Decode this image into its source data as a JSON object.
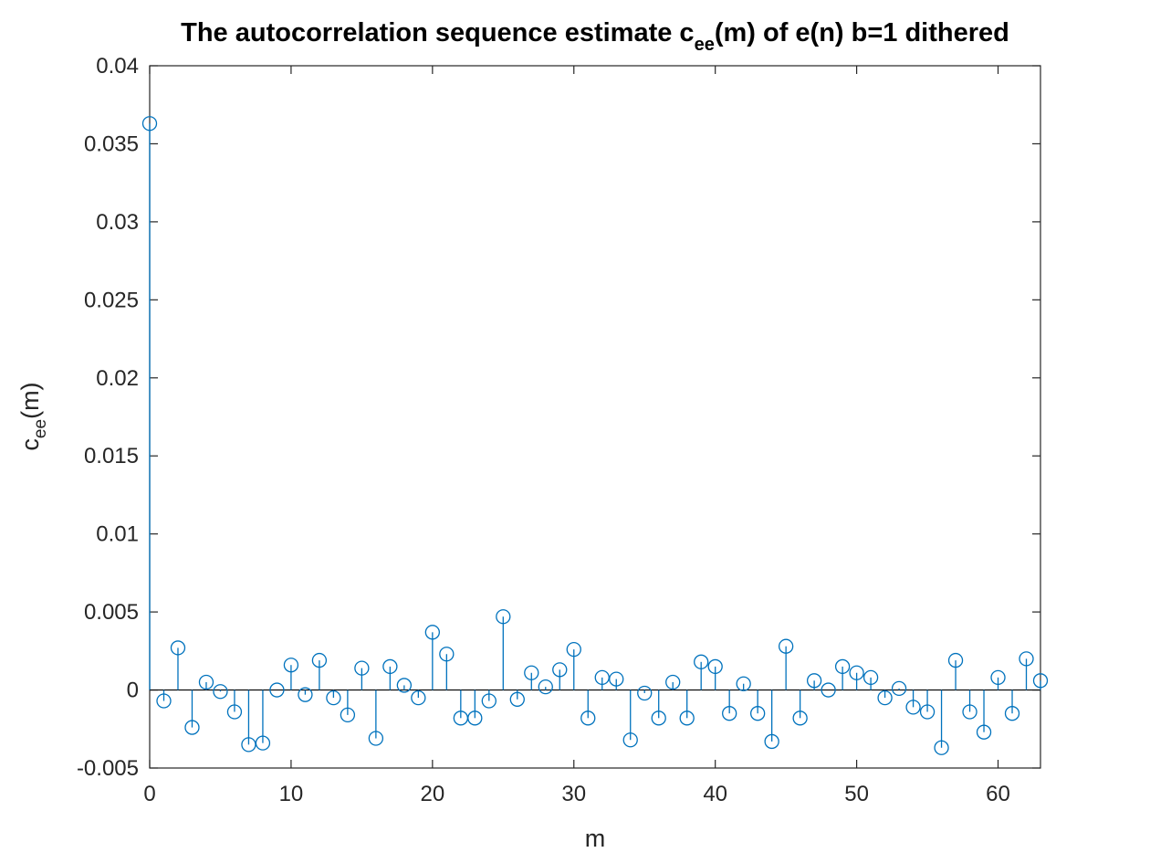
{
  "chart_data": {
    "type": "stem",
    "title": {
      "before": "The autocorrelation sequence estimate c",
      "subscript": "ee",
      "after": "(m) of e(n) b=1 dithered"
    },
    "xlabel": "m",
    "ylabel": {
      "before": "c",
      "subscript": "ee",
      "after": "(m)"
    },
    "xlim": [
      0,
      63
    ],
    "ylim": [
      -0.005,
      0.04
    ],
    "xticks": [
      0,
      10,
      20,
      30,
      40,
      50,
      60
    ],
    "yticks": [
      -0.005,
      0,
      0.005,
      0.01,
      0.015,
      0.02,
      0.025,
      0.03,
      0.035,
      0.04
    ],
    "xtick_labels": [
      "0",
      "10",
      "20",
      "30",
      "40",
      "50",
      "60"
    ],
    "ytick_labels": [
      "-0.005",
      "0",
      "0.005",
      "0.01",
      "0.015",
      "0.02",
      "0.025",
      "0.03",
      "0.035",
      "0.04"
    ],
    "grid": false,
    "color": "#0072BD",
    "marker": "open-circle",
    "x": [
      0,
      1,
      2,
      3,
      4,
      5,
      6,
      7,
      8,
      9,
      10,
      11,
      12,
      13,
      14,
      15,
      16,
      17,
      18,
      19,
      20,
      21,
      22,
      23,
      24,
      25,
      26,
      27,
      28,
      29,
      30,
      31,
      32,
      33,
      34,
      35,
      36,
      37,
      38,
      39,
      40,
      41,
      42,
      43,
      44,
      45,
      46,
      47,
      48,
      49,
      50,
      51,
      52,
      53,
      54,
      55,
      56,
      57,
      58,
      59,
      60,
      61,
      62,
      63
    ],
    "y": [
      0.0363,
      -0.0007,
      0.0027,
      -0.0024,
      0.0005,
      -0.0001,
      -0.0014,
      -0.0035,
      -0.0034,
      0.0,
      0.0016,
      -0.0003,
      0.0019,
      -0.0005,
      -0.0016,
      0.0014,
      -0.0031,
      0.0015,
      0.0003,
      -0.0005,
      0.0037,
      0.0023,
      -0.0018,
      -0.0018,
      -0.0007,
      0.0047,
      -0.0006,
      0.0011,
      0.0002,
      0.0013,
      0.0026,
      -0.0018,
      0.0008,
      0.0007,
      -0.0032,
      -0.0002,
      -0.0018,
      0.0005,
      -0.0018,
      0.0018,
      0.0015,
      -0.0015,
      0.0004,
      -0.0015,
      -0.0033,
      0.0028,
      -0.0018,
      0.0006,
      0.0,
      0.0015,
      0.0011,
      0.0008,
      -0.0005,
      0.0001,
      -0.0011,
      -0.0014,
      -0.0037,
      0.0019,
      -0.0014,
      -0.0027,
      0.0008,
      -0.0015,
      0.002,
      0.0006
    ]
  }
}
